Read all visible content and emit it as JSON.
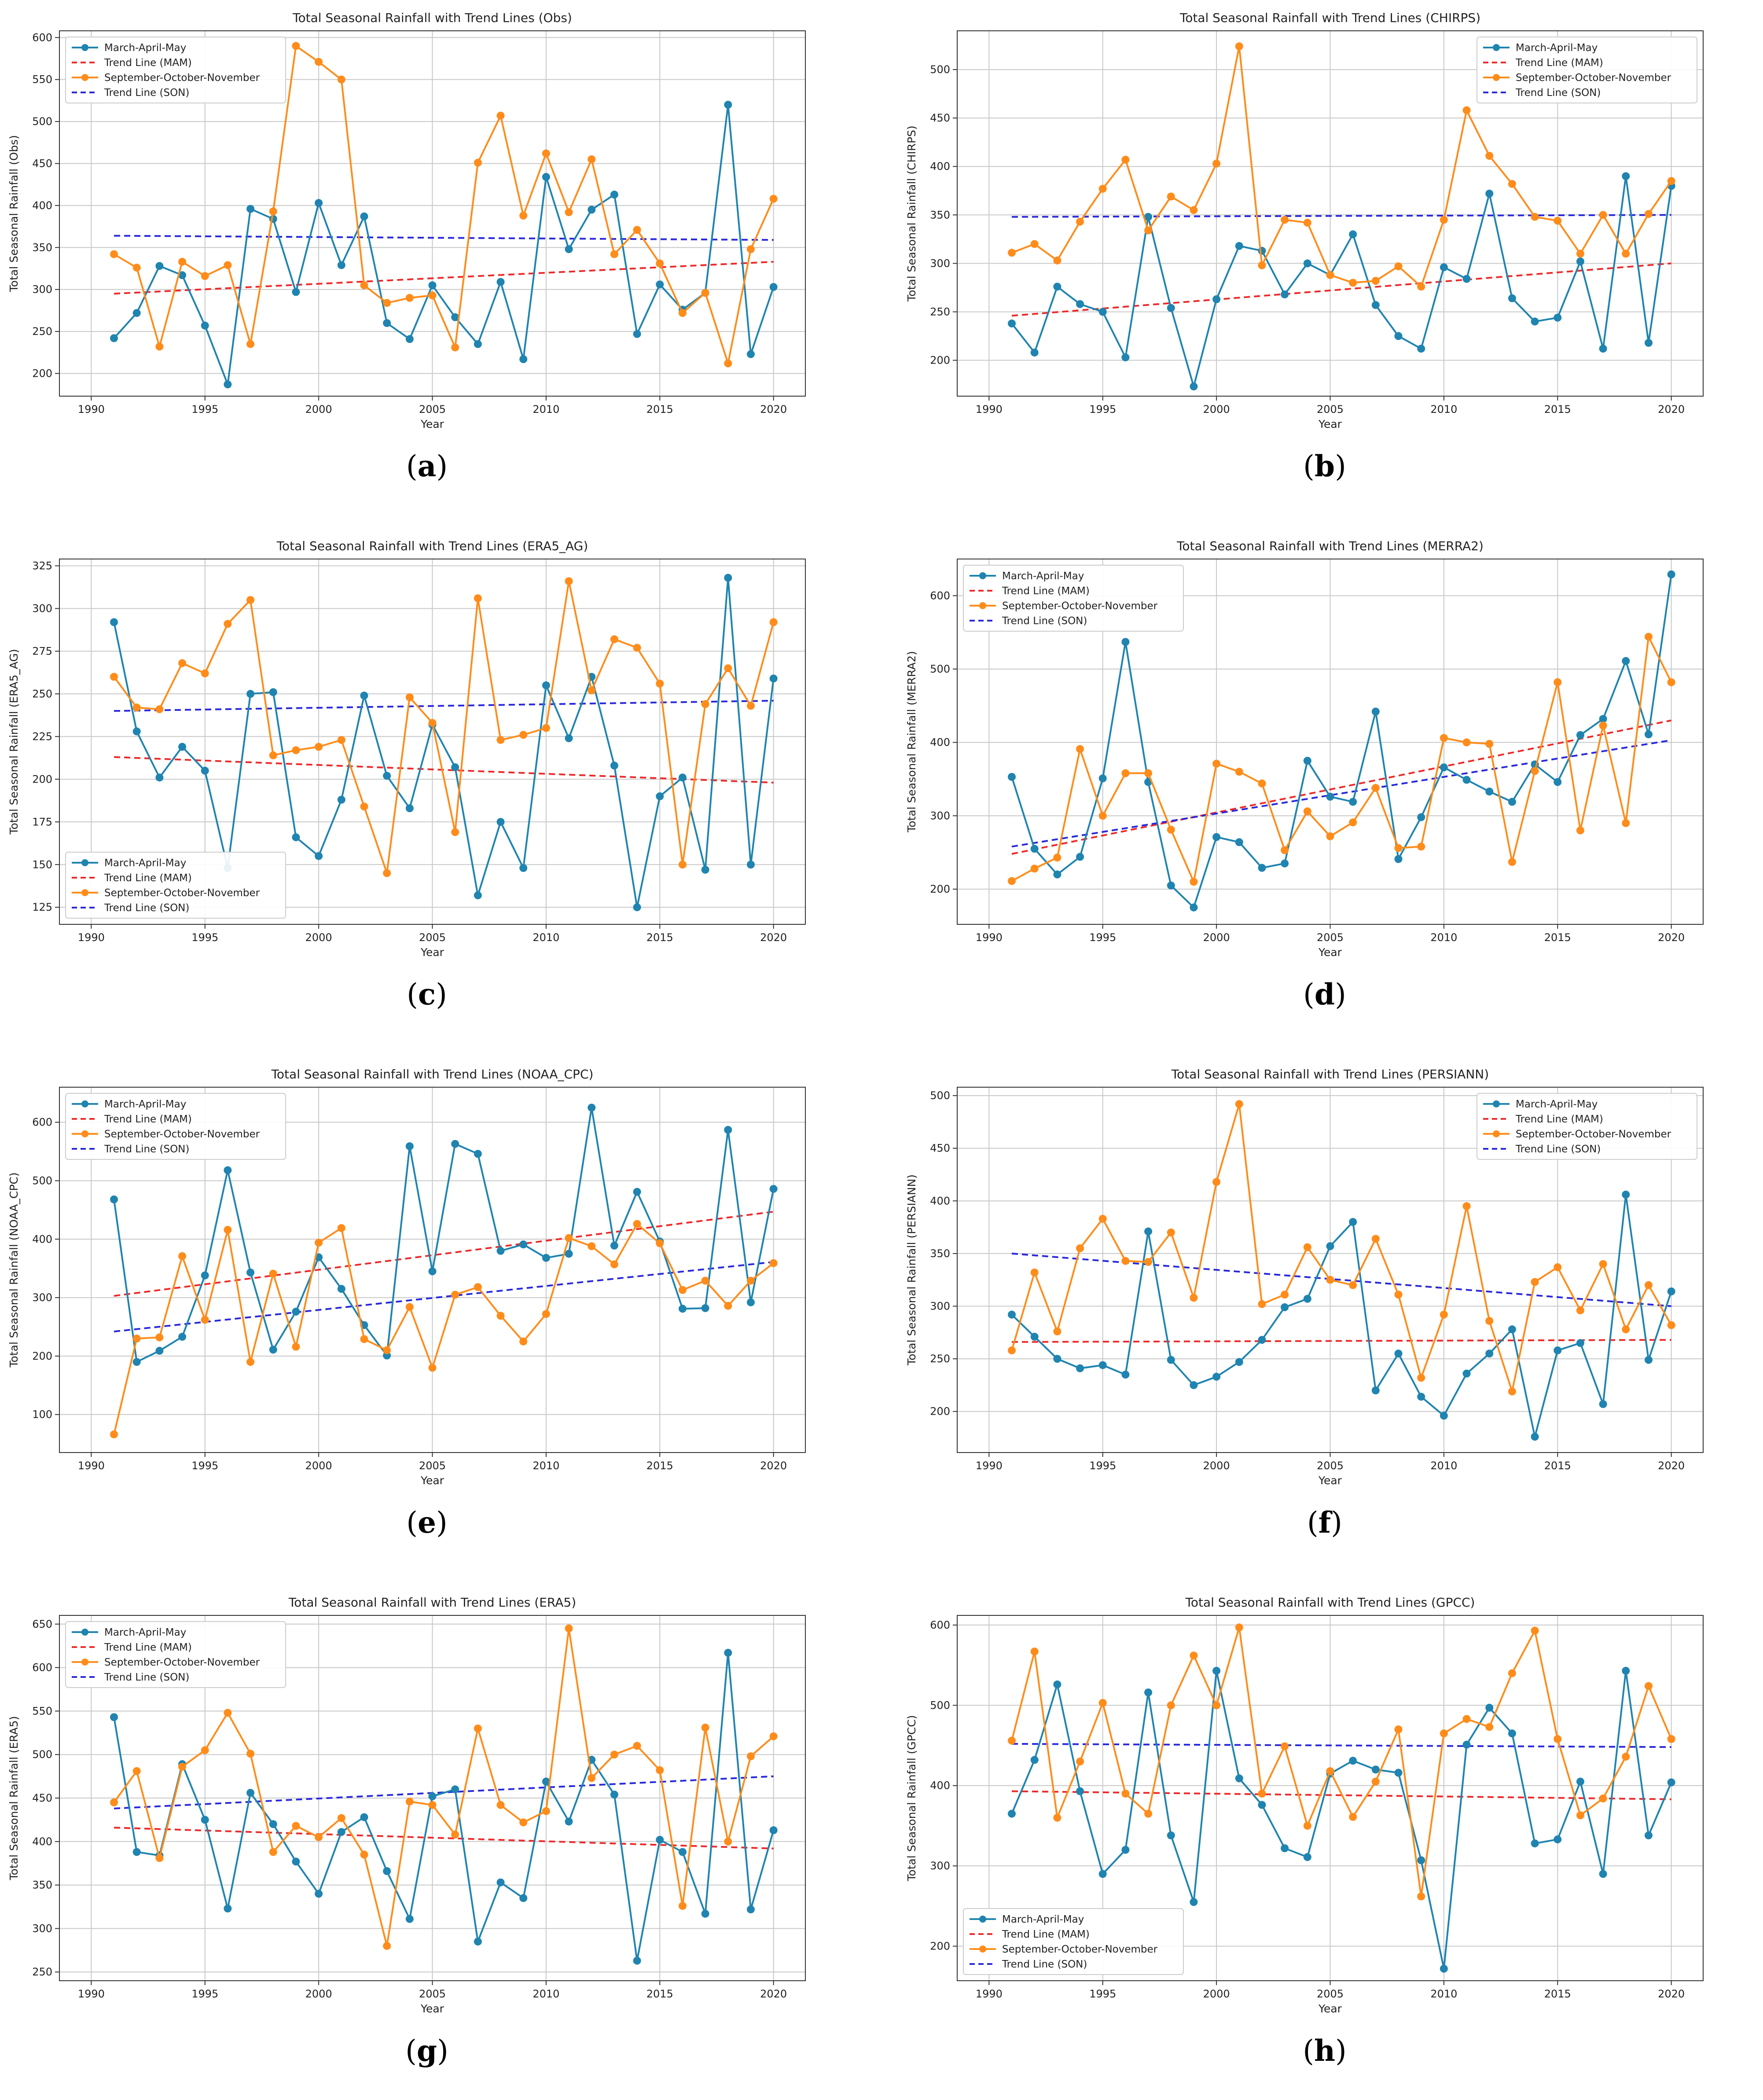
{
  "legend": {
    "mam": "March-April-May",
    "mam_trend": "Trend Line (MAM)",
    "son": "September-October-November",
    "son_trend": "Trend Line (SON)"
  },
  "colors": {
    "mam": "#1f84b0",
    "son": "#ff8c1a",
    "mam_trend": "#ee2a2a",
    "son_trend": "#2929dd",
    "grid": "#c8c8c8"
  },
  "xlabel": "Year",
  "years": [
    1991,
    1992,
    1993,
    1994,
    1995,
    1996,
    1997,
    1998,
    1999,
    2000,
    2001,
    2002,
    2003,
    2004,
    2005,
    2006,
    2007,
    2008,
    2009,
    2010,
    2011,
    2012,
    2013,
    2014,
    2015,
    2016,
    2017,
    2018,
    2019,
    2020
  ],
  "xticks": [
    1990,
    1995,
    2000,
    2005,
    2010,
    2015,
    2020
  ],
  "chart_data": [
    {
      "type": "line",
      "letter": "a",
      "title": "Total Seasonal Rainfall with Trend Lines (Obs)",
      "ylabel": "Total Seasonal Rainfall (Obs)",
      "ylim": [
        173,
        608
      ],
      "yticks": [
        200,
        250,
        300,
        350,
        400,
        450,
        500,
        550,
        600
      ],
      "legend_position": "top-left",
      "mam": [
        242,
        272,
        328,
        317,
        257,
        187,
        396,
        384,
        297,
        403,
        329,
        387,
        260,
        241,
        305,
        267,
        235,
        309,
        217,
        434,
        348,
        395,
        413,
        247,
        306,
        276,
        296,
        520,
        223,
        303
      ],
      "son": [
        342,
        326,
        232,
        333,
        316,
        329,
        235,
        393,
        590,
        571,
        550,
        305,
        284,
        290,
        293,
        231,
        451,
        507,
        388,
        462,
        392,
        455,
        342,
        371,
        331,
        272,
        296,
        212,
        348,
        408
      ],
      "mam_trend": [
        295,
        333
      ],
      "son_trend": [
        364,
        359
      ]
    },
    {
      "type": "line",
      "letter": "b",
      "title": "Total Seasonal Rainfall with Trend Lines (CHIRPS)",
      "ylabel": "Total Seasonal Rainfall (CHIRPS)",
      "ylim": [
        163,
        540
      ],
      "yticks": [
        200,
        250,
        300,
        350,
        400,
        450,
        500
      ],
      "legend_position": "top-right",
      "mam": [
        238,
        208,
        276,
        258,
        250,
        203,
        348,
        254,
        173,
        263,
        318,
        313,
        268,
        300,
        288,
        330,
        257,
        225,
        212,
        296,
        284,
        372,
        264,
        240,
        244,
        302,
        212,
        390,
        218,
        380
      ],
      "son": [
        311,
        320,
        303,
        343,
        377,
        407,
        334,
        369,
        355,
        403,
        524,
        298,
        345,
        342,
        288,
        280,
        282,
        297,
        276,
        345,
        458,
        411,
        382,
        348,
        344,
        310,
        350,
        310,
        351,
        385
      ],
      "mam_trend": [
        246,
        300
      ],
      "son_trend": [
        348,
        350
      ]
    },
    {
      "type": "line",
      "letter": "c",
      "title": "Total Seasonal Rainfall with Trend Lines (ERA5_AG)",
      "ylabel": "Total Seasonal Rainfall (ERA5_AG)",
      "ylim": [
        115,
        329
      ],
      "yticks": [
        125,
        150,
        175,
        200,
        225,
        250,
        275,
        300,
        325
      ],
      "legend_position": "bottom-left",
      "mam": [
        292,
        228,
        201,
        219,
        205,
        148,
        250,
        251,
        166,
        155,
        188,
        249,
        202,
        183,
        232,
        207,
        132,
        175,
        148,
        255,
        224,
        260,
        208,
        125,
        190,
        201,
        147,
        318,
        150,
        259
      ],
      "son": [
        260,
        242,
        241,
        268,
        262,
        291,
        305,
        214,
        217,
        219,
        223,
        184,
        145,
        248,
        233,
        169,
        306,
        223,
        226,
        230,
        316,
        252,
        282,
        277,
        256,
        150,
        244,
        265,
        243,
        292
      ],
      "mam_trend": [
        213,
        198
      ],
      "son_trend": [
        240,
        246
      ]
    },
    {
      "type": "line",
      "letter": "d",
      "title": "Total Seasonal Rainfall with Trend Lines (MERRA2)",
      "ylabel": "Total Seasonal Rainfall (MERRA2)",
      "ylim": [
        152,
        650
      ],
      "yticks": [
        200,
        300,
        400,
        500,
        600
      ],
      "legend_position": "top-left",
      "mam": [
        353,
        255,
        220,
        244,
        351,
        537,
        346,
        205,
        175,
        271,
        264,
        229,
        235,
        375,
        326,
        319,
        442,
        241,
        298,
        366,
        349,
        333,
        319,
        370,
        346,
        410,
        432,
        511,
        411,
        629
      ],
      "son": [
        211,
        228,
        243,
        391,
        300,
        358,
        358,
        281,
        210,
        371,
        360,
        344,
        253,
        306,
        272,
        291,
        338,
        256,
        258,
        406,
        400,
        398,
        237,
        361,
        482,
        280,
        423,
        290,
        544,
        482
      ],
      "mam_trend": [
        248,
        430
      ],
      "son_trend": [
        258,
        403
      ]
    },
    {
      "type": "line",
      "letter": "e",
      "title": "Total Seasonal Rainfall with Trend Lines (NOAA_CPC)",
      "ylabel": "Total Seasonal Rainfall (NOAA_CPC)",
      "ylim": [
        35,
        660
      ],
      "yticks": [
        100,
        200,
        300,
        400,
        500,
        600
      ],
      "legend_position": "top-left",
      "mam": [
        468,
        190,
        209,
        233,
        338,
        518,
        343,
        211,
        276,
        369,
        315,
        253,
        201,
        559,
        345,
        563,
        546,
        380,
        391,
        368,
        375,
        625,
        389,
        481,
        396,
        281,
        282,
        587,
        292,
        486
      ],
      "son": [
        66,
        230,
        232,
        371,
        262,
        416,
        190,
        341,
        216,
        394,
        419,
        229,
        210,
        284,
        180,
        305,
        318,
        269,
        225,
        272,
        402,
        388,
        357,
        426,
        393,
        313,
        329,
        286,
        329,
        359
      ],
      "mam_trend": [
        303,
        447
      ],
      "son_trend": [
        242,
        361
      ]
    },
    {
      "type": "line",
      "letter": "f",
      "title": "Total Seasonal Rainfall with Trend Lines (PERSIANN)",
      "ylabel": "Total Seasonal Rainfall (PERSIANN)",
      "ylim": [
        161,
        508
      ],
      "yticks": [
        200,
        250,
        300,
        350,
        400,
        450,
        500
      ],
      "legend_position": "top-right",
      "mam": [
        292,
        271,
        250,
        241,
        244,
        235,
        371,
        249,
        225,
        233,
        247,
        268,
        299,
        307,
        357,
        380,
        220,
        255,
        214,
        196,
        236,
        255,
        278,
        176,
        258,
        265,
        207,
        406,
        249,
        314
      ],
      "son": [
        258,
        332,
        276,
        355,
        383,
        343,
        342,
        370,
        308,
        418,
        492,
        302,
        311,
        356,
        325,
        320,
        364,
        311,
        232,
        292,
        395,
        286,
        219,
        323,
        337,
        296,
        340,
        278,
        320,
        282
      ],
      "mam_trend": [
        266,
        268
      ],
      "son_trend": [
        350,
        300
      ]
    },
    {
      "type": "line",
      "letter": "g",
      "title": "Total Seasonal Rainfall with Trend Lines (ERA5)",
      "ylabel": "Total Seasonal Rainfall (ERA5)",
      "ylim": [
        240,
        660
      ],
      "yticks": [
        250,
        300,
        350,
        400,
        450,
        500,
        550,
        600,
        650
      ],
      "legend_position": "top-left",
      "mam": [
        543,
        388,
        384,
        489,
        425,
        323,
        456,
        420,
        377,
        340,
        411,
        428,
        366,
        311,
        452,
        460,
        285,
        353,
        335,
        469,
        423,
        494,
        454,
        263,
        402,
        388,
        317,
        617,
        322,
        413
      ],
      "son": [
        445,
        481,
        381,
        486,
        505,
        548,
        501,
        388,
        418,
        405,
        427,
        385,
        280,
        446,
        442,
        408,
        530,
        442,
        422,
        435,
        645,
        473,
        500,
        510,
        482,
        326,
        531,
        400,
        498,
        521
      ],
      "mam_trend": [
        416,
        392
      ],
      "son_trend": [
        438,
        475
      ]
    },
    {
      "type": "line",
      "letter": "h",
      "title": "Total Seasonal Rainfall with Trend Lines (GPCC)",
      "ylabel": "Total Seasonal Rainfall (GPCC)",
      "ylim": [
        157,
        612
      ],
      "yticks": [
        200,
        300,
        400,
        500,
        600
      ],
      "legend_position": "bottom-left",
      "mam": [
        365,
        432,
        526,
        393,
        290,
        320,
        516,
        338,
        255,
        543,
        409,
        376,
        322,
        311,
        415,
        431,
        420,
        416,
        307,
        172,
        451,
        497,
        465,
        328,
        333,
        405,
        290,
        543,
        338,
        404
      ],
      "son": [
        456,
        567,
        360,
        430,
        503,
        390,
        365,
        500,
        562,
        500,
        597,
        390,
        449,
        350,
        418,
        361,
        405,
        470,
        262,
        465,
        483,
        473,
        540,
        593,
        458,
        363,
        384,
        436,
        524,
        458
      ],
      "mam_trend": [
        393,
        383
      ],
      "son_trend": [
        452,
        448
      ]
    }
  ]
}
